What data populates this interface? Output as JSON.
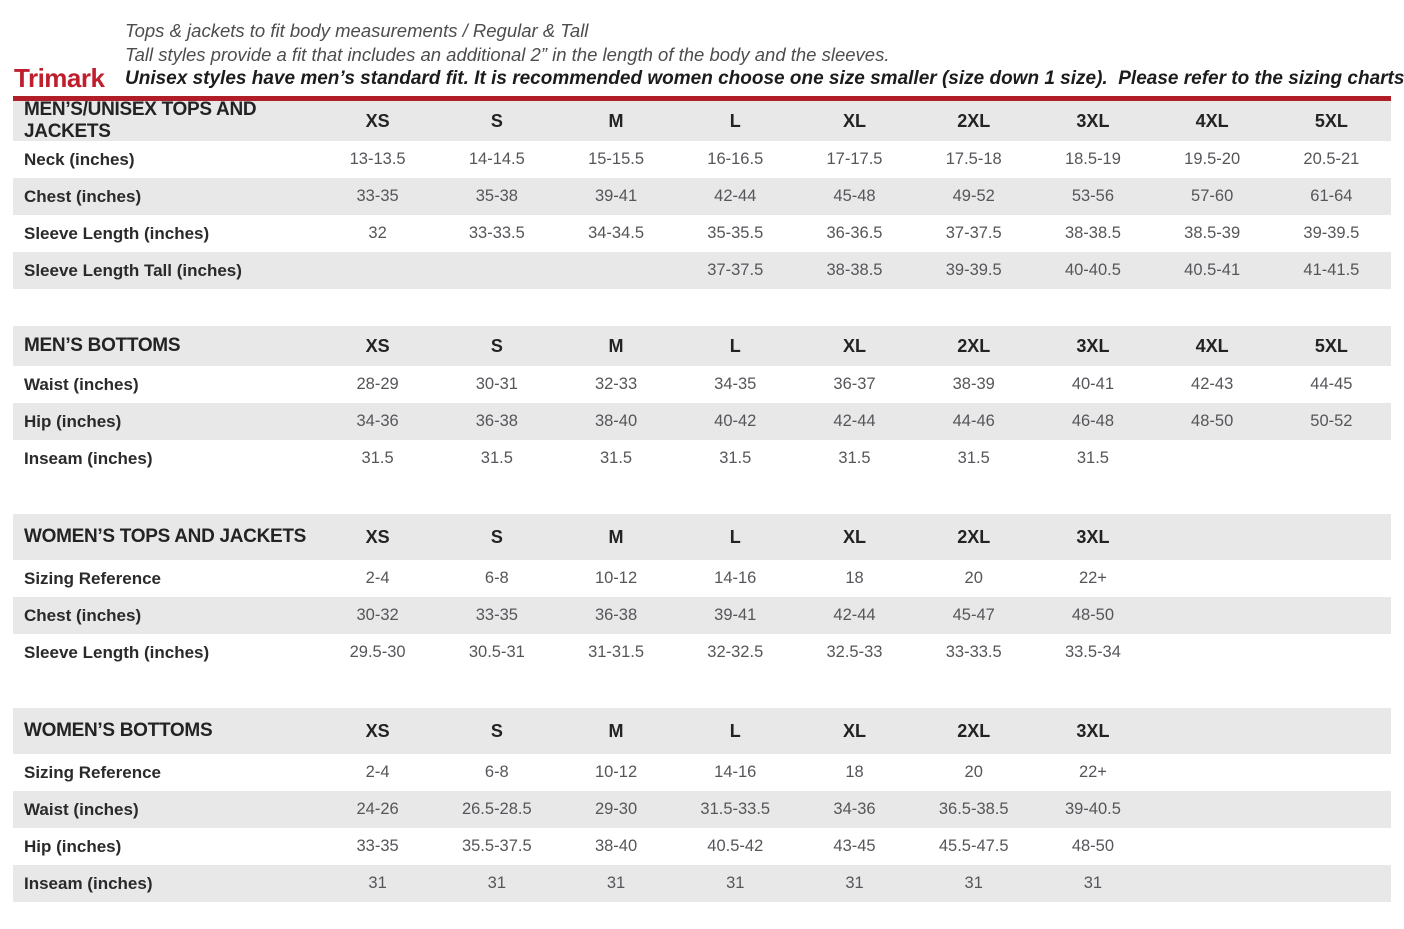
{
  "brand": {
    "name": "Trimark"
  },
  "header": {
    "line1": "Tops & jackets to fit body measurements / Regular & Tall",
    "line2": "Tall styles provide a fit that includes an additional 2” in the length of the body and the sleeves.",
    "line3": "Unisex styles have men’s standard fit. It is recommended women choose one size smaller (size down 1 size).  Please refer to the sizing charts."
  },
  "colors": {
    "brand_red": "#bf1e2c",
    "divider_red": "#b01e28",
    "row_gray": "#e8e8e8",
    "value_text": "#55565a"
  },
  "tables": [
    {
      "title": "MEN’S/UNISEX TOPS AND JACKETS",
      "group": "men",
      "sizes": [
        "XS",
        "S",
        "M",
        "L",
        "XL",
        "2XL",
        "3XL",
        "4XL",
        "5XL"
      ],
      "rows": [
        {
          "label": "Neck (inches)",
          "values": [
            "13-13.5",
            "14-14.5",
            "15-15.5",
            "16-16.5",
            "17-17.5",
            "17.5-18",
            "18.5-19",
            "19.5-20",
            "20.5-21"
          ]
        },
        {
          "label": "Chest (inches)",
          "values": [
            "33-35",
            "35-38",
            "39-41",
            "42-44",
            "45-48",
            "49-52",
            "53-56",
            "57-60",
            "61-64"
          ]
        },
        {
          "label": "Sleeve Length (inches)",
          "values": [
            "32",
            "33-33.5",
            "34-34.5",
            "35-35.5",
            "36-36.5",
            "37-37.5",
            "38-38.5",
            "38.5-39",
            "39-39.5"
          ]
        },
        {
          "label": "Sleeve Length Tall (inches)",
          "values": [
            "",
            "",
            "",
            "37-37.5",
            "38-38.5",
            "39-39.5",
            "40-40.5",
            "40.5-41",
            "41-41.5"
          ]
        }
      ]
    },
    {
      "title": "MEN’S BOTTOMS",
      "group": "men",
      "sizes": [
        "XS",
        "S",
        "M",
        "L",
        "XL",
        "2XL",
        "3XL",
        "4XL",
        "5XL"
      ],
      "rows": [
        {
          "label": "Waist (inches)",
          "values": [
            "28-29",
            "30-31",
            "32-33",
            "34-35",
            "36-37",
            "38-39",
            "40-41",
            "42-43",
            "44-45"
          ]
        },
        {
          "label": "Hip (inches)",
          "values": [
            "34-36",
            "36-38",
            "38-40",
            "40-42",
            "42-44",
            "44-46",
            "46-48",
            "48-50",
            "50-52"
          ]
        },
        {
          "label": "Inseam (inches)",
          "values": [
            "31.5",
            "31.5",
            "31.5",
            "31.5",
            "31.5",
            "31.5",
            "31.5",
            "",
            ""
          ]
        }
      ]
    },
    {
      "title": "WOMEN’S TOPS AND JACKETS",
      "group": "women",
      "sizes": [
        "XS",
        "S",
        "M",
        "L",
        "XL",
        "2XL",
        "3XL"
      ],
      "rows": [
        {
          "label": "Sizing Reference",
          "values": [
            "2-4",
            "6-8",
            "10-12",
            "14-16",
            "18",
            "20",
            "22+"
          ]
        },
        {
          "label": "Chest (inches)",
          "values": [
            "30-32",
            "33-35",
            "36-38",
            "39-41",
            "42-44",
            "45-47",
            "48-50"
          ]
        },
        {
          "label": "Sleeve Length (inches)",
          "values": [
            "29.5-30",
            "30.5-31",
            "31-31.5",
            "32-32.5",
            "32.5-33",
            "33-33.5",
            "33.5-34"
          ]
        }
      ]
    },
    {
      "title": "WOMEN’S BOTTOMS",
      "group": "women",
      "sizes": [
        "XS",
        "S",
        "M",
        "L",
        "XL",
        "2XL",
        "3XL"
      ],
      "rows": [
        {
          "label": "Sizing Reference",
          "values": [
            "2-4",
            "6-8",
            "10-12",
            "14-16",
            "18",
            "20",
            "22+"
          ]
        },
        {
          "label": "Waist (inches)",
          "values": [
            "24-26",
            "26.5-28.5",
            "29-30",
            "31.5-33.5",
            "34-36",
            "36.5-38.5",
            "39-40.5"
          ]
        },
        {
          "label": "Hip (inches)",
          "values": [
            "33-35",
            "35.5-37.5",
            "38-40",
            "40.5-42",
            "43-45",
            "45.5-47.5",
            "48-50"
          ]
        },
        {
          "label": "Inseam (inches)",
          "values": [
            "31",
            "31",
            "31",
            "31",
            "31",
            "31",
            "31"
          ]
        }
      ]
    }
  ]
}
